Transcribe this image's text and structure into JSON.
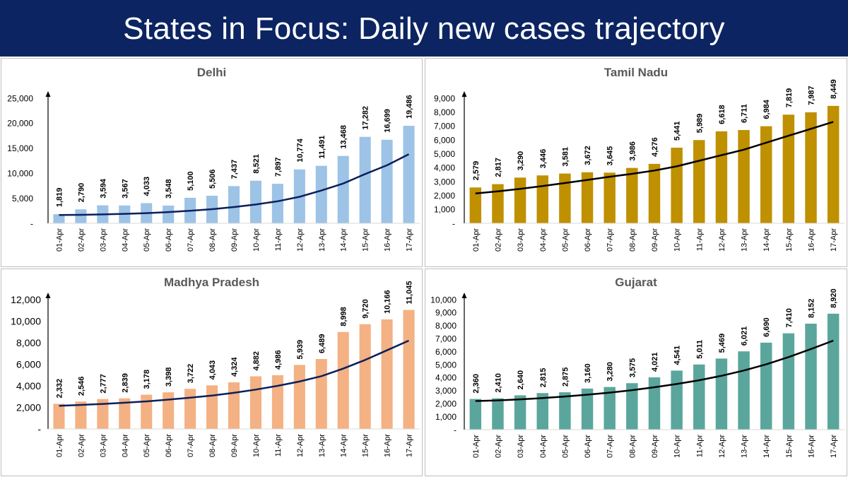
{
  "header": {
    "title": "States in Focus: Daily new cases trajectory"
  },
  "chart_data": [
    {
      "type": "bar",
      "title": "Delhi",
      "bar_color": "#9dc3e6",
      "trend_color": "#0c1f5c",
      "categories": [
        "01-Apr",
        "02-Apr",
        "03-Apr",
        "04-Apr",
        "05-Apr",
        "06-Apr",
        "07-Apr",
        "08-Apr",
        "09-Apr",
        "10-Apr",
        "11-Apr",
        "12-Apr",
        "13-Apr",
        "14-Apr",
        "15-Apr",
        "16-Apr",
        "17-Apr"
      ],
      "values": [
        1819,
        2790,
        3594,
        3567,
        4033,
        3548,
        5100,
        5506,
        7437,
        8521,
        7897,
        10774,
        11491,
        13468,
        17282,
        16699,
        19486
      ],
      "value_labels": [
        "1,819",
        "2,790",
        "3,594",
        "3,567",
        "4,033",
        "3,548",
        "5,100",
        "5,506",
        "7,437",
        "8,521",
        "7,897",
        "10,774",
        "11,491",
        "13,468",
        "17,282",
        "16,699",
        "19,486"
      ],
      "trend": [
        1650,
        1700,
        1780,
        1890,
        2040,
        2240,
        2500,
        2830,
        3250,
        3760,
        4400,
        5300,
        6550,
        7950,
        9850,
        11600,
        13800
      ],
      "ylim": [
        0,
        25000
      ],
      "yticks": [
        0,
        5000,
        10000,
        15000,
        20000,
        25000
      ],
      "ytick_labels": [
        "-",
        "5,000",
        "10,000",
        "15,000",
        "20,000",
        "25,000"
      ],
      "xlabel": "",
      "ylabel": ""
    },
    {
      "type": "bar",
      "title": "Tamil Nadu",
      "bar_color": "#bf9000",
      "trend_color": "#000000",
      "categories": [
        "01-Apr",
        "02-Apr",
        "03-Apr",
        "04-Apr",
        "05-Apr",
        "06-Apr",
        "07-Apr",
        "08-Apr",
        "09-Apr",
        "10-Apr",
        "11-Apr",
        "12-Apr",
        "13-Apr",
        "14-Apr",
        "15-Apr",
        "16-Apr",
        "17-Apr"
      ],
      "values": [
        2579,
        2817,
        3290,
        3446,
        3581,
        3672,
        3645,
        3986,
        4276,
        5441,
        5989,
        6618,
        6711,
        6984,
        7819,
        7987,
        8449
      ],
      "value_labels": [
        "2,579",
        "2,817",
        "3,290",
        "3,446",
        "3,581",
        "3,672",
        "3,645",
        "3,986",
        "4,276",
        "5,441",
        "5,989",
        "6,618",
        "6,711",
        "6,984",
        "7,819",
        "7,987",
        "8,449"
      ],
      "trend": [
        2150,
        2300,
        2480,
        2680,
        2900,
        3120,
        3350,
        3560,
        3800,
        4100,
        4500,
        4900,
        5300,
        5800,
        6300,
        6800,
        7300
      ],
      "ylim": [
        0,
        9000
      ],
      "yticks": [
        0,
        1000,
        2000,
        3000,
        4000,
        5000,
        6000,
        7000,
        8000,
        9000
      ],
      "ytick_labels": [
        "-",
        "1,000",
        "2,000",
        "3,000",
        "4,000",
        "5,000",
        "6,000",
        "7,000",
        "8,000",
        "9,000"
      ],
      "xlabel": "",
      "ylabel": ""
    },
    {
      "type": "bar",
      "title": "Madhya Pradesh",
      "bar_color": "#f4b183",
      "trend_color": "#0c1f5c",
      "categories": [
        "01-Apr",
        "02-Apr",
        "03-Apr",
        "04-Apr",
        "05-Apr",
        "06-Apr",
        "07-Apr",
        "08-Apr",
        "09-Apr",
        "10-Apr",
        "11-Apr",
        "12-Apr",
        "13-Apr",
        "14-Apr",
        "15-Apr",
        "16-Apr",
        "17-Apr"
      ],
      "values": [
        2332,
        2546,
        2777,
        2839,
        3178,
        3398,
        3722,
        4043,
        4324,
        4882,
        4986,
        5939,
        6489,
        8998,
        9720,
        10166,
        11045
      ],
      "value_labels": [
        "2,332",
        "2,546",
        "2,777",
        "2,839",
        "3,178",
        "3,398",
        "3,722",
        "4,043",
        "4,324",
        "4,882",
        "4,986",
        "5,939",
        "6,489",
        "8,998",
        "9,720",
        "10,166",
        "11,045"
      ],
      "trend": [
        2150,
        2230,
        2320,
        2430,
        2560,
        2720,
        2900,
        3100,
        3350,
        3650,
        4000,
        4400,
        4900,
        5600,
        6400,
        7300,
        8200
      ],
      "ylim": [
        0,
        12000
      ],
      "yticks": [
        0,
        2000,
        4000,
        6000,
        8000,
        10000,
        12000
      ],
      "ytick_labels": [
        "-",
        "2,000",
        "4,000",
        "6,000",
        "8,000",
        "10,000",
        "12,000"
      ],
      "xlabel": "",
      "ylabel": ""
    },
    {
      "type": "bar",
      "title": "Gujarat",
      "bar_color": "#5ba69c",
      "trend_color": "#000000",
      "categories": [
        "01-Apr",
        "02-Apr",
        "03-Apr",
        "04-Apr",
        "05-Apr",
        "06-Apr",
        "07-Apr",
        "08-Apr",
        "09-Apr",
        "10-Apr",
        "11-Apr",
        "12-Apr",
        "13-Apr",
        "14-Apr",
        "15-Apr",
        "16-Apr",
        "17-Apr"
      ],
      "values": [
        2360,
        2410,
        2640,
        2815,
        2875,
        3160,
        3280,
        3575,
        4021,
        4541,
        5011,
        5469,
        6021,
        6690,
        7410,
        8152,
        8920
      ],
      "value_labels": [
        "2,360",
        "2,410",
        "2,640",
        "2,815",
        "2,875",
        "3,160",
        "3,280",
        "3,575",
        "4,021",
        "4,541",
        "5,011",
        "5,469",
        "6,021",
        "6,690",
        "7,410",
        "8,152",
        "8,920"
      ],
      "trend": [
        2200,
        2250,
        2330,
        2430,
        2550,
        2690,
        2850,
        3040,
        3260,
        3510,
        3800,
        4140,
        4550,
        5020,
        5580,
        6200,
        6850
      ],
      "ylim": [
        0,
        10000
      ],
      "yticks": [
        0,
        1000,
        2000,
        3000,
        4000,
        5000,
        6000,
        7000,
        8000,
        9000,
        10000
      ],
      "ytick_labels": [
        "-",
        "1,000",
        "2,000",
        "3,000",
        "4,000",
        "5,000",
        "6,000",
        "7,000",
        "8,000",
        "9,000",
        "10,000"
      ],
      "xlabel": "",
      "ylabel": ""
    }
  ]
}
